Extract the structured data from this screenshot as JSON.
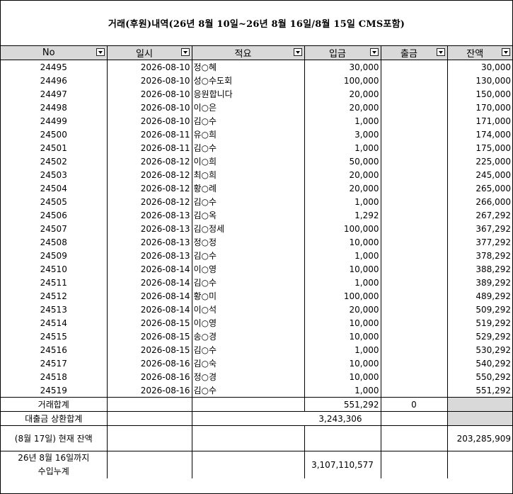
{
  "title": "거래(후원)내역(26년 8월 10일~26년 8월 16일/8월 15일 CMS포함)",
  "headers": [
    "No",
    "일시",
    "적요",
    "입금",
    "출금",
    "잔액"
  ],
  "rows": [
    {
      "no": "24495",
      "date": "2026-08-10",
      "memo": "정○혜",
      "in": "30,000",
      "bal": "30,000"
    },
    {
      "no": "24496",
      "date": "2026-08-10",
      "memo": "성○수도회",
      "in": "100,000",
      "bal": "130,000"
    },
    {
      "no": "24497",
      "date": "2026-08-10",
      "memo": "응원합니다",
      "in": "20,000",
      "bal": "150,000"
    },
    {
      "no": "24498",
      "date": "2026-08-10",
      "memo": "이○은",
      "in": "20,000",
      "bal": "170,000"
    },
    {
      "no": "24499",
      "date": "2026-08-10",
      "memo": "김○수",
      "in": "1,000",
      "bal": "171,000"
    },
    {
      "no": "24500",
      "date": "2026-08-11",
      "memo": "유○희",
      "in": "3,000",
      "bal": "174,000"
    },
    {
      "no": "24501",
      "date": "2026-08-11",
      "memo": "김○수",
      "in": "1,000",
      "bal": "175,000"
    },
    {
      "no": "24502",
      "date": "2026-08-12",
      "memo": "이○희",
      "in": "50,000",
      "bal": "225,000"
    },
    {
      "no": "24503",
      "date": "2026-08-12",
      "memo": "최○희",
      "in": "20,000",
      "bal": "245,000"
    },
    {
      "no": "24504",
      "date": "2026-08-12",
      "memo": "황○례",
      "in": "20,000",
      "bal": "265,000"
    },
    {
      "no": "24505",
      "date": "2026-08-12",
      "memo": "김○수",
      "in": "1,000",
      "bal": "266,000"
    },
    {
      "no": "24506",
      "date": "2026-08-13",
      "memo": "김○옥",
      "in": "1,292",
      "bal": "267,292"
    },
    {
      "no": "24507",
      "date": "2026-08-13",
      "memo": "김○정세",
      "in": "100,000",
      "bal": "367,292"
    },
    {
      "no": "24508",
      "date": "2026-08-13",
      "memo": "정○정",
      "in": "10,000",
      "bal": "377,292"
    },
    {
      "no": "24509",
      "date": "2026-08-13",
      "memo": "김○수",
      "in": "1,000",
      "bal": "378,292"
    },
    {
      "no": "24510",
      "date": "2026-08-14",
      "memo": "이○영",
      "in": "10,000",
      "bal": "388,292"
    },
    {
      "no": "24511",
      "date": "2026-08-14",
      "memo": "김○수",
      "in": "1,000",
      "bal": "389,292"
    },
    {
      "no": "24512",
      "date": "2026-08-14",
      "memo": "황○미",
      "in": "100,000",
      "bal": "489,292"
    },
    {
      "no": "24513",
      "date": "2026-08-14",
      "memo": "이○석",
      "in": "20,000",
      "bal": "509,292"
    },
    {
      "no": "24514",
      "date": "2026-08-15",
      "memo": "이○영",
      "in": "10,000",
      "bal": "519,292"
    },
    {
      "no": "24515",
      "date": "2026-08-15",
      "memo": "송○경",
      "in": "10,000",
      "bal": "529,292"
    },
    {
      "no": "24516",
      "date": "2026-08-15",
      "memo": "김○수",
      "in": "1,000",
      "bal": "530,292"
    },
    {
      "no": "24517",
      "date": "2026-08-16",
      "memo": "김○숙",
      "in": "10,000",
      "bal": "540,292"
    },
    {
      "no": "24518",
      "date": "2026-08-16",
      "memo": "정○경",
      "in": "10,000",
      "bal": "550,292"
    },
    {
      "no": "24519",
      "date": "2026-08-16",
      "memo": "김○수",
      "in": "1,000",
      "bal": "551,292"
    }
  ],
  "summary": {
    "total_label": "거래합계",
    "total_in": "551,292",
    "total_out": "0",
    "loan_label": "대출금 상환합계",
    "loan_value": "3,243,306",
    "balance_label": "(8월 17일) 현재 잔액",
    "balance_value": "203,285,909",
    "income_label_line1": "26년 8월 16일까지",
    "income_label_line2": "수입누계",
    "income_value": "3,107,110,577"
  },
  "colors": {
    "header_bg": "#d9d9d9",
    "grid": "#000000"
  },
  "icons": {
    "filter": "filter-dropdown-icon"
  }
}
